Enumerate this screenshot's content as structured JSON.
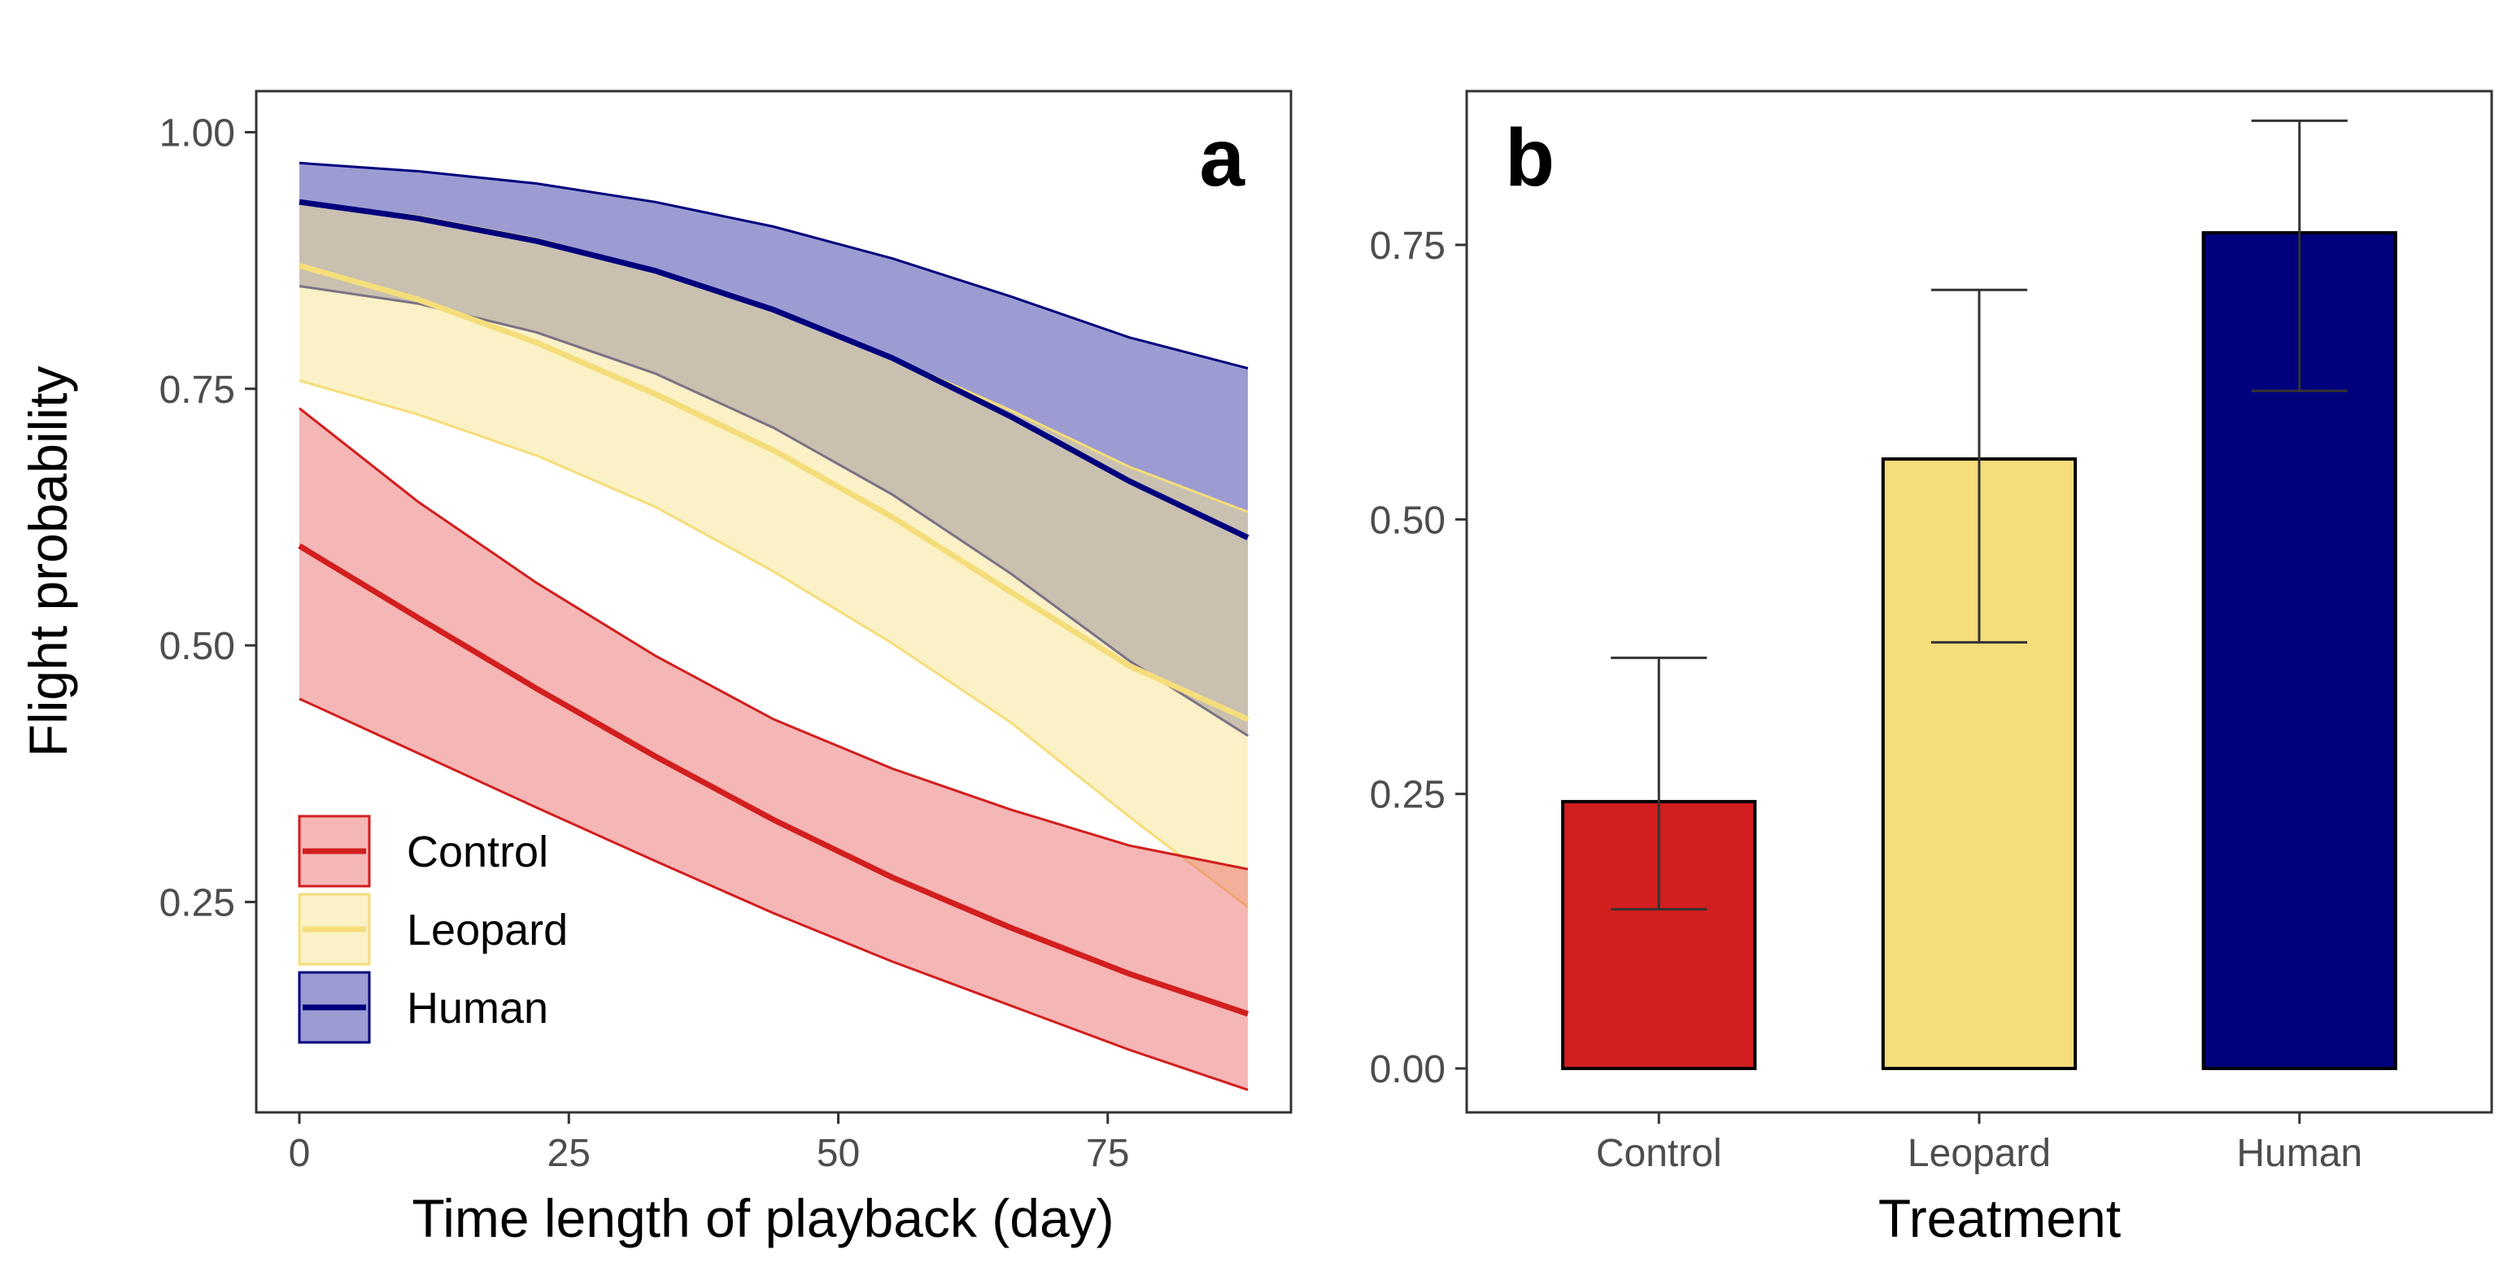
{
  "chart_data": [
    {
      "panel": "a",
      "type": "line",
      "xlabel": "Time length of playback (day)",
      "ylabel": "Flight probability",
      "xlim": [
        -4,
        92
      ],
      "ylim": [
        0.045,
        1.04
      ],
      "x_ticks": [
        0,
        25,
        50,
        75
      ],
      "x_tick_labels": [
        "0",
        "25",
        "50",
        "75"
      ],
      "y_ticks": [
        0.25,
        0.5,
        0.75,
        1.0
      ],
      "y_tick_labels": [
        "0.25",
        "0.50",
        "0.75",
        "1.00"
      ],
      "legend_position": "bottom-left",
      "x": [
        0,
        11,
        22,
        33,
        44,
        55,
        66,
        77,
        88
      ],
      "series": [
        {
          "name": "Human",
          "color": "#00007d",
          "fill": "#3a3aa5",
          "fit": [
            0.932,
            0.916,
            0.894,
            0.865,
            0.827,
            0.78,
            0.723,
            0.66,
            0.605
          ],
          "lower": [
            0.85,
            0.833,
            0.805,
            0.765,
            0.712,
            0.647,
            0.57,
            0.485,
            0.412
          ],
          "upper": [
            0.97,
            0.962,
            0.95,
            0.932,
            0.908,
            0.877,
            0.84,
            0.8,
            0.77
          ]
        },
        {
          "name": "Leopard",
          "color": "#f5dd7a",
          "fill": "#f5e38e",
          "fit": [
            0.87,
            0.837,
            0.795,
            0.745,
            0.69,
            0.625,
            0.552,
            0.48,
            0.428
          ],
          "lower": [
            0.758,
            0.725,
            0.685,
            0.635,
            0.572,
            0.502,
            0.425,
            0.333,
            0.245
          ],
          "upper": [
            0.932,
            0.918,
            0.896,
            0.866,
            0.826,
            0.78,
            0.729,
            0.674,
            0.63
          ]
        },
        {
          "name": "Control",
          "color": "#d21e1e",
          "fill": "#ec6d6d",
          "fit": [
            0.597,
            0.527,
            0.458,
            0.392,
            0.33,
            0.274,
            0.225,
            0.18,
            0.141
          ],
          "lower": [
            0.448,
            0.395,
            0.342,
            0.29,
            0.239,
            0.192,
            0.149,
            0.106,
            0.067
          ],
          "upper": [
            0.731,
            0.64,
            0.561,
            0.49,
            0.428,
            0.38,
            0.34,
            0.305,
            0.282
          ]
        }
      ],
      "legend": [
        "Control",
        "Leopard",
        "Human"
      ]
    },
    {
      "panel": "b",
      "type": "bar",
      "xlabel": "Treatment",
      "ylabel": "",
      "ylim": [
        -0.04,
        0.89
      ],
      "y_ticks": [
        0.0,
        0.25,
        0.5,
        0.75
      ],
      "y_tick_labels": [
        "0.00",
        "0.25",
        "0.50",
        "0.75"
      ],
      "categories": [
        "Control",
        "Leopard",
        "Human"
      ],
      "values": [
        0.243,
        0.555,
        0.761
      ],
      "error_low": [
        0.145,
        0.388,
        0.617
      ],
      "error_high": [
        0.374,
        0.709,
        0.863
      ],
      "colors": [
        "#d21e1e",
        "#f5dd7a",
        "#00007d"
      ]
    }
  ]
}
